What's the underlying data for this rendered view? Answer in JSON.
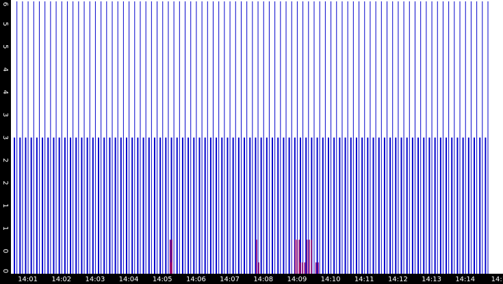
{
  "chart_data": {
    "type": "bar",
    "title": "",
    "xlabel": "",
    "ylabel": "",
    "ylim": [
      0,
      6
    ],
    "y_ticks": [
      "0",
      "0",
      "1",
      "1",
      "2",
      "2",
      "3",
      "3",
      "4",
      "4",
      "5",
      "5",
      "6"
    ],
    "x_ticks": [
      "14:01",
      "14:02",
      "14:03",
      "14:04",
      "14:05",
      "14:06",
      "14:07",
      "14:08",
      "14:09",
      "14:10",
      "14:11",
      "14:12",
      "14:13",
      "14:14",
      "14:1"
    ],
    "x_range_minutes": [
      "14:00:30",
      "14:15:05"
    ],
    "colors": {
      "background": "#ffffff",
      "axis": "#000000",
      "tick_text": "#ffffff",
      "blue_series": "#0000cc",
      "magenta_series": "#990066"
    },
    "grid": false,
    "legend": "none",
    "series": [
      {
        "color": "#0000cc",
        "full_height_value": 6,
        "bar_value": 3,
        "bar_start_time": "14:00:35",
        "bar_interval_seconds": 5,
        "bar_count": 170,
        "description_of_pattern": "regular vertical bars every ~5 s; thin bars reach 6, alternating thicker bars reach 3"
      },
      {
        "color": "#990066",
        "points": [
          {
            "t": "14:05:13",
            "v": 0.75
          },
          {
            "t": "14:05:16",
            "v": 0.75
          },
          {
            "t": "14:05:15",
            "v": 0.25
          },
          {
            "t": "14:07:47",
            "v": 0.75
          },
          {
            "t": "14:07:51",
            "v": 0.25
          },
          {
            "t": "14:08:56",
            "v": 0.75
          },
          {
            "t": "14:08:59",
            "v": 0.75
          },
          {
            "t": "14:09:03",
            "v": 0.75
          },
          {
            "t": "14:09:05",
            "v": 0.25
          },
          {
            "t": "14:09:09",
            "v": 0.25
          },
          {
            "t": "14:09:13",
            "v": 0.25
          },
          {
            "t": "14:09:17",
            "v": 0.75
          },
          {
            "t": "14:09:21",
            "v": 0.75
          },
          {
            "t": "14:09:25",
            "v": 0.75
          },
          {
            "t": "14:09:33",
            "v": 0.25
          },
          {
            "t": "14:09:37",
            "v": 0.25
          }
        ]
      }
    ]
  }
}
